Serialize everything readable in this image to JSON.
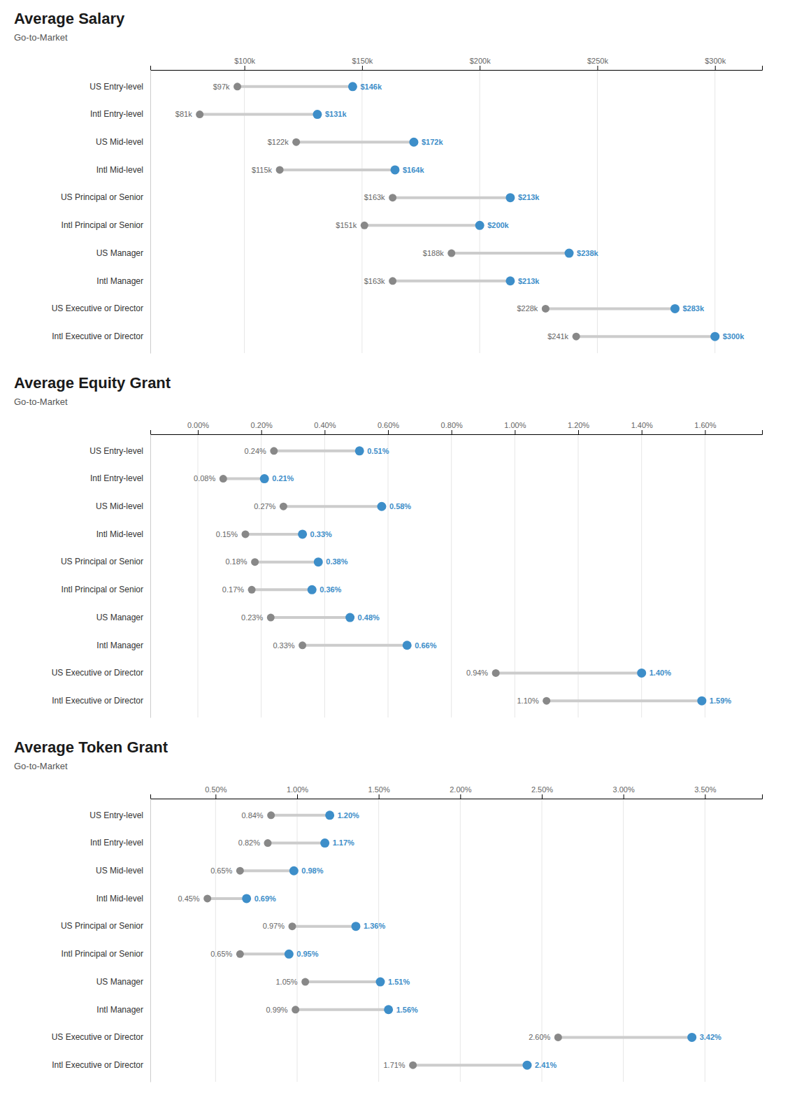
{
  "chart_data": [
    {
      "type": "dumbbell",
      "title": "Average Salary",
      "subtitle": "Go-to-Market",
      "orientation": "horizontal",
      "grid": true,
      "data_labels": true,
      "categories": [
        "US Entry-level",
        "Intl Entry-level",
        "US Mid-level",
        "Intl Mid-level",
        "US Principal or Senior",
        "Intl Principal or Senior",
        "US Manager",
        "Intl Manager",
        "US Executive or Director",
        "Intl Executive or Director"
      ],
      "xlim": [
        60,
        320
      ],
      "xticks": [
        {
          "value": 100,
          "label": "$100k"
        },
        {
          "value": 150,
          "label": "$150k"
        },
        {
          "value": 200,
          "label": "$200k"
        },
        {
          "value": 250,
          "label": "$250k"
        },
        {
          "value": 300,
          "label": "$300k"
        }
      ],
      "series": [
        {
          "color": "#888888",
          "values": [
            97,
            81,
            122,
            115,
            163,
            151,
            188,
            163,
            228,
            241
          ],
          "value_labels": [
            "$97k",
            "$81k",
            "$122k",
            "$115k",
            "$163k",
            "$151k",
            "$188k",
            "$163k",
            "$228k",
            "$241k"
          ]
        },
        {
          "color": "#3d8ec9",
          "values": [
            146,
            131,
            172,
            164,
            213,
            200,
            238,
            213,
            283,
            300
          ],
          "value_labels": [
            "$146k",
            "$131k",
            "$172k",
            "$164k",
            "$213k",
            "$200k",
            "$238k",
            "$213k",
            "$283k",
            "$300k"
          ]
        }
      ]
    },
    {
      "type": "dumbbell",
      "title": "Average Equity Grant",
      "subtitle": "Go-to-Market",
      "orientation": "horizontal",
      "grid": true,
      "data_labels": true,
      "categories": [
        "US Entry-level",
        "Intl Entry-level",
        "US Mid-level",
        "Intl Mid-level",
        "US Principal or Senior",
        "Intl Principal or Senior",
        "US Manager",
        "Intl Manager",
        "US Executive or Director",
        "Intl Executive or Director"
      ],
      "xlim": [
        -0.15,
        1.78
      ],
      "xticks": [
        {
          "value": 0.0,
          "label": "0.00%"
        },
        {
          "value": 0.2,
          "label": "0.20%"
        },
        {
          "value": 0.4,
          "label": "0.40%"
        },
        {
          "value": 0.6,
          "label": "0.60%"
        },
        {
          "value": 0.8,
          "label": "0.80%"
        },
        {
          "value": 1.0,
          "label": "1.00%"
        },
        {
          "value": 1.2,
          "label": "1.20%"
        },
        {
          "value": 1.4,
          "label": "1.40%"
        },
        {
          "value": 1.6,
          "label": "1.60%"
        }
      ],
      "series": [
        {
          "color": "#888888",
          "values": [
            0.24,
            0.08,
            0.27,
            0.15,
            0.18,
            0.17,
            0.23,
            0.33,
            0.94,
            1.1
          ],
          "value_labels": [
            "0.24%",
            "0.08%",
            "0.27%",
            "0.15%",
            "0.18%",
            "0.17%",
            "0.23%",
            "0.33%",
            "0.94%",
            "1.10%"
          ]
        },
        {
          "color": "#3d8ec9",
          "values": [
            0.51,
            0.21,
            0.58,
            0.33,
            0.38,
            0.36,
            0.48,
            0.66,
            1.4,
            1.59
          ],
          "value_labels": [
            "0.51%",
            "0.21%",
            "0.58%",
            "0.33%",
            "0.38%",
            "0.36%",
            "0.48%",
            "0.66%",
            "1.40%",
            "1.59%"
          ]
        }
      ]
    },
    {
      "type": "dumbbell",
      "title": "Average Token Grant",
      "subtitle": "Go-to-Market",
      "orientation": "horizontal",
      "grid": true,
      "data_labels": true,
      "categories": [
        "US Entry-level",
        "Intl Entry-level",
        "US Mid-level",
        "Intl Mid-level",
        "US Principal or Senior",
        "Intl Principal or Senior",
        "US Manager",
        "Intl Manager",
        "US Executive or Director",
        "Intl Executive or Director"
      ],
      "xlim": [
        0.1,
        3.85
      ],
      "xticks": [
        {
          "value": 0.5,
          "label": "0.50%"
        },
        {
          "value": 1.0,
          "label": "1.00%"
        },
        {
          "value": 1.5,
          "label": "1.50%"
        },
        {
          "value": 2.0,
          "label": "2.00%"
        },
        {
          "value": 2.5,
          "label": "2.50%"
        },
        {
          "value": 3.0,
          "label": "3.00%"
        },
        {
          "value": 3.5,
          "label": "3.50%"
        }
      ],
      "series": [
        {
          "color": "#888888",
          "values": [
            0.84,
            0.82,
            0.65,
            0.45,
            0.97,
            0.65,
            1.05,
            0.99,
            2.6,
            1.71
          ],
          "value_labels": [
            "0.84%",
            "0.82%",
            "0.65%",
            "0.45%",
            "0.97%",
            "0.65%",
            "1.05%",
            "0.99%",
            "2.60%",
            "1.71%"
          ]
        },
        {
          "color": "#3d8ec9",
          "values": [
            1.2,
            1.17,
            0.98,
            0.69,
            1.36,
            0.95,
            1.51,
            1.56,
            3.42,
            2.41
          ],
          "value_labels": [
            "1.20%",
            "1.17%",
            "0.98%",
            "0.69%",
            "1.36%",
            "0.95%",
            "1.51%",
            "1.56%",
            "3.42%",
            "2.41%"
          ]
        }
      ]
    }
  ]
}
